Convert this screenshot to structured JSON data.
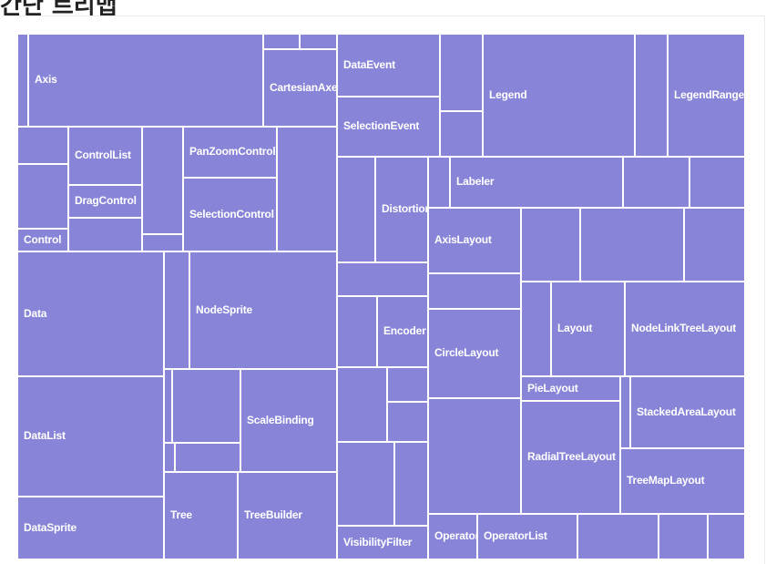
{
  "page": {
    "title": "간단 트리맵"
  },
  "colors": {
    "fill": "#8884d8",
    "stroke": "#ffffff",
    "label": "#ffffff"
  },
  "chart_data": {
    "type": "treemap",
    "items": [
      {
        "name": "Axis"
      },
      {
        "name": "CartesianAxes"
      },
      {
        "name": "DataEvent"
      },
      {
        "name": "SelectionEvent"
      },
      {
        "name": "Legend"
      },
      {
        "name": "LegendRange"
      },
      {
        "name": "ControlList"
      },
      {
        "name": "DragControl"
      },
      {
        "name": "PanZoomControl"
      },
      {
        "name": "SelectionControl"
      },
      {
        "name": "Control"
      },
      {
        "name": "Distortion"
      },
      {
        "name": "Labeler"
      },
      {
        "name": "AxisLayout"
      },
      {
        "name": "Data"
      },
      {
        "name": "NodeSprite"
      },
      {
        "name": "Encoder"
      },
      {
        "name": "Layout"
      },
      {
        "name": "NodeLinkTreeLayout"
      },
      {
        "name": "CircleLayout"
      },
      {
        "name": "PieLayout"
      },
      {
        "name": "DataList"
      },
      {
        "name": "ScaleBinding"
      },
      {
        "name": "StackedAreaLayout"
      },
      {
        "name": "RadialTreeLayout"
      },
      {
        "name": "TreeMapLayout"
      },
      {
        "name": "DataSprite"
      },
      {
        "name": "Tree"
      },
      {
        "name": "TreeBuilder"
      },
      {
        "name": "VisibilityFilter"
      },
      {
        "name": "Operator"
      },
      {
        "name": "OperatorList"
      }
    ]
  }
}
